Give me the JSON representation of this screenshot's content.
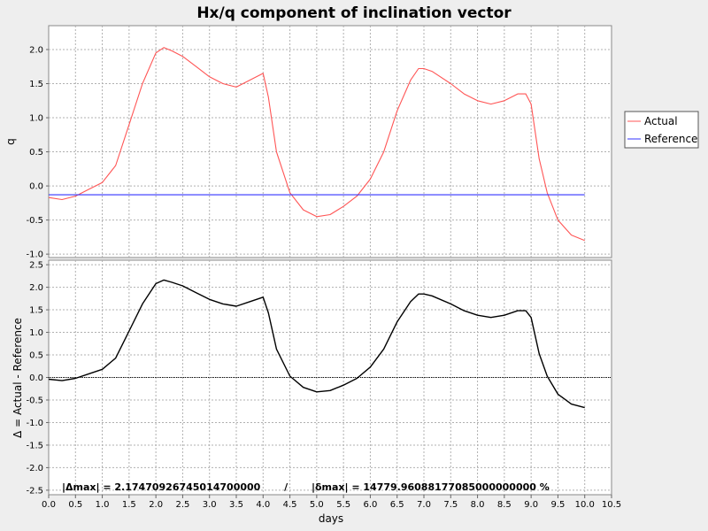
{
  "chart_data": {
    "type": "line",
    "title": "Hx/q component of inclination vector",
    "xlabel": "days",
    "x_ticks": [
      "0.0",
      "0.5",
      "1.0",
      "1.5",
      "2.0",
      "2.5",
      "3.0",
      "3.5",
      "4.0",
      "4.5",
      "5.0",
      "5.5",
      "6.0",
      "6.5",
      "7.0",
      "7.5",
      "8.0",
      "8.5",
      "9.0",
      "9.5",
      "10.0",
      "10.5"
    ],
    "xlim": [
      0,
      10.5
    ],
    "grid": true,
    "legend_position": "right",
    "top_panel": {
      "ylabel": "q",
      "ylim": [
        -1.05,
        2.35
      ],
      "y_ticks": [
        "-1.0",
        "-0.5",
        "0.0",
        "0.5",
        "1.0",
        "1.5",
        "2.0"
      ],
      "series": [
        {
          "name": "Actual",
          "color": "#ff5555",
          "x": [
            0.0,
            0.25,
            0.5,
            0.75,
            1.0,
            1.25,
            1.5,
            1.75,
            2.0,
            2.15,
            2.3,
            2.5,
            2.75,
            3.0,
            3.25,
            3.5,
            3.75,
            4.0,
            4.1,
            4.25,
            4.5,
            4.75,
            5.0,
            5.25,
            5.5,
            5.75,
            6.0,
            6.25,
            6.5,
            6.75,
            6.9,
            7.0,
            7.15,
            7.5,
            7.75,
            8.0,
            8.25,
            8.5,
            8.75,
            8.9,
            9.0,
            9.15,
            9.3,
            9.5,
            9.75,
            10.0
          ],
          "y": [
            -0.17,
            -0.2,
            -0.15,
            -0.05,
            0.05,
            0.3,
            0.9,
            1.5,
            1.95,
            2.03,
            1.98,
            1.9,
            1.75,
            1.6,
            1.5,
            1.45,
            1.55,
            1.65,
            1.3,
            0.5,
            -0.1,
            -0.35,
            -0.45,
            -0.42,
            -0.3,
            -0.15,
            0.1,
            0.5,
            1.1,
            1.55,
            1.72,
            1.72,
            1.68,
            1.5,
            1.35,
            1.25,
            1.2,
            1.25,
            1.35,
            1.35,
            1.2,
            0.4,
            -0.1,
            -0.5,
            -0.72,
            -0.8
          ]
        },
        {
          "name": "Reference",
          "color": "#3333ff",
          "x": [
            0.0,
            10.0
          ],
          "y": [
            -0.13,
            -0.13
          ]
        }
      ]
    },
    "bottom_panel": {
      "ylabel": "Δ = Actual - Reference",
      "ylim": [
        -2.6,
        2.6
      ],
      "y_ticks": [
        "-2.5",
        "-2.0",
        "-1.5",
        "-1.0",
        "-0.5",
        "0.0",
        "0.5",
        "1.0",
        "1.5",
        "2.0",
        "2.5"
      ],
      "series": [
        {
          "color": "#000000",
          "x": [
            0.0,
            0.25,
            0.5,
            0.75,
            1.0,
            1.25,
            1.5,
            1.75,
            2.0,
            2.15,
            2.3,
            2.5,
            2.75,
            3.0,
            3.25,
            3.5,
            3.75,
            4.0,
            4.1,
            4.25,
            4.5,
            4.75,
            5.0,
            5.25,
            5.5,
            5.75,
            6.0,
            6.25,
            6.5,
            6.75,
            6.9,
            7.0,
            7.15,
            7.5,
            7.75,
            8.0,
            8.25,
            8.5,
            8.75,
            8.9,
            9.0,
            9.15,
            9.3,
            9.5,
            9.75,
            10.0
          ],
          "y": [
            -0.04,
            -0.07,
            -0.02,
            0.08,
            0.18,
            0.43,
            1.03,
            1.63,
            2.08,
            2.16,
            2.11,
            2.03,
            1.88,
            1.73,
            1.63,
            1.58,
            1.68,
            1.78,
            1.43,
            0.63,
            0.03,
            -0.22,
            -0.32,
            -0.29,
            -0.17,
            -0.02,
            0.23,
            0.63,
            1.23,
            1.68,
            1.85,
            1.85,
            1.81,
            1.63,
            1.48,
            1.38,
            1.33,
            1.38,
            1.48,
            1.48,
            1.33,
            0.53,
            0.03,
            -0.37,
            -0.59,
            -0.67
          ]
        }
      ],
      "zero_line": true,
      "stats_text": "|Δmax| = 2.17470926745014700000       /       |δmax| = 14779.96088177085000000000 %"
    }
  }
}
